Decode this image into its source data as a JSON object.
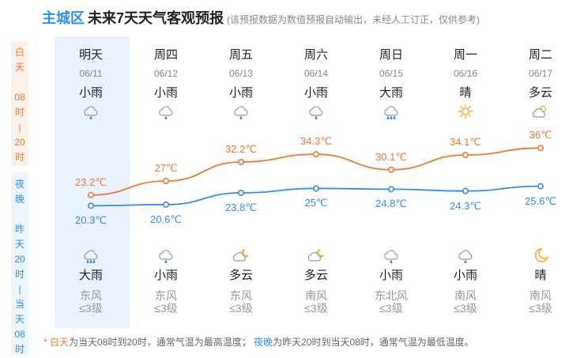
{
  "header": {
    "district": "主城区",
    "title": "未来7天天气客观预报",
    "note": "(该预报数据为数值预报自动输出，未经人工订正，仅供参考)"
  },
  "side": {
    "day_label": [
      "白",
      "天",
      "",
      "08",
      "时",
      "|",
      "20",
      "时"
    ],
    "night_label": [
      "夜",
      "晚",
      "",
      "昨",
      "天",
      "20",
      "时",
      "|",
      "当",
      "天",
      "08",
      "时"
    ]
  },
  "days": [
    {
      "name": "明天",
      "date": "06/11",
      "day_weather": "小雨",
      "day_icon": "light-rain-icon",
      "night_weather": "大雨",
      "night_icon": "heavy-rain-icon",
      "wind": "东风",
      "wind_level": "≤3级"
    },
    {
      "name": "周四",
      "date": "06/12",
      "day_weather": "小雨",
      "day_icon": "light-rain-icon",
      "night_weather": "小雨",
      "night_icon": "light-rain-icon",
      "wind": "东风",
      "wind_level": "≤3级"
    },
    {
      "name": "周五",
      "date": "06/13",
      "day_weather": "小雨",
      "day_icon": "light-rain-icon",
      "night_weather": "多云",
      "night_icon": "partly-cloudy-night-icon",
      "wind": "东风",
      "wind_level": "≤3级"
    },
    {
      "name": "周六",
      "date": "06/14",
      "day_weather": "小雨",
      "day_icon": "light-rain-icon",
      "night_weather": "多云",
      "night_icon": "partly-cloudy-night-icon",
      "wind": "南风",
      "wind_level": "≤3级"
    },
    {
      "name": "周日",
      "date": "06/15",
      "day_weather": "大雨",
      "day_icon": "heavy-rain-icon",
      "night_weather": "小雨",
      "night_icon": "light-rain-icon",
      "wind": "东北风",
      "wind_level": "≤3级"
    },
    {
      "name": "周一",
      "date": "06/16",
      "day_weather": "晴",
      "day_icon": "sun-icon",
      "night_weather": "小雨",
      "night_icon": "light-rain-icon",
      "wind": "南风",
      "wind_level": "≤3级"
    },
    {
      "name": "周二",
      "date": "06/17",
      "day_weather": "多云",
      "day_icon": "partly-cloudy-icon",
      "night_weather": "晴",
      "night_icon": "moon-icon",
      "wind": "南风",
      "wind_level": "≤3级"
    }
  ],
  "footer": {
    "star": "*",
    "day_term": "白天",
    "day_desc": "为当天08时到20时，通常气温为最高温度；",
    "night_term": "夜晚",
    "night_desc": "为昨天20时到当天08时，通常气温为最低温度。"
  },
  "colors": {
    "high": "#f07a2f",
    "low": "#2f8ff0",
    "highlight": "#eaf3fd"
  },
  "chart_data": {
    "type": "line",
    "categories": [
      "06/11",
      "06/12",
      "06/13",
      "06/14",
      "06/15",
      "06/16",
      "06/17"
    ],
    "series": [
      {
        "key": "high",
        "values": [
          23.2,
          27,
          32.2,
          34.3,
          30.1,
          34.1,
          36
        ],
        "labels": [
          "23.2℃",
          "27℃",
          "32.2℃",
          "34.3℃",
          "30.1℃",
          "34.1℃",
          "36℃"
        ]
      },
      {
        "key": "low",
        "values": [
          20.3,
          20.6,
          23.8,
          25,
          24.8,
          24.3,
          25.6
        ],
        "labels": [
          "20.3℃",
          "20.6℃",
          "23.8℃",
          "25℃",
          "24.8℃",
          "24.3℃",
          "25.6℃"
        ]
      }
    ]
  }
}
